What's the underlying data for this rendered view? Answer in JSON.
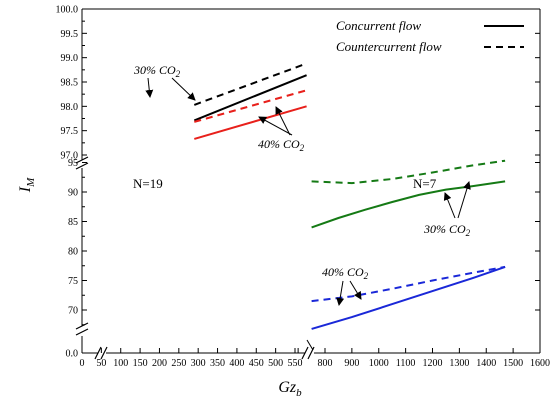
{
  "chart_data": {
    "type": "line",
    "xlabel_main": "Gz",
    "xlabel_sub": "b",
    "ylabel_main": "I",
    "ylabel_sub": "M",
    "legend": [
      {
        "label": "Concurrent flow",
        "style": "solid"
      },
      {
        "label": "Countercurrent flow",
        "style": "dashed"
      }
    ],
    "legend_position": "top-right",
    "panels": [
      {
        "label": "N=19",
        "xlim": [
          280,
          580
        ],
        "ylim": [
          97.0,
          100.0
        ],
        "series": [
          {
            "name": "30% CO2 countercurrent",
            "color": "#000000",
            "style": "dashed",
            "x": [
              290,
              580
            ],
            "y": [
              98.03,
              98.88
            ]
          },
          {
            "name": "30% CO2 concurrent",
            "color": "#000000",
            "style": "solid",
            "x": [
              290,
              580
            ],
            "y": [
              97.71,
              98.64
            ]
          },
          {
            "name": "40% CO2 countercurrent",
            "color": "#e8201b",
            "style": "dashed",
            "x": [
              290,
              580
            ],
            "y": [
              97.68,
              98.33
            ]
          },
          {
            "name": "40% CO2 concurrent",
            "color": "#e8201b",
            "style": "solid",
            "x": [
              290,
              580
            ],
            "y": [
              97.33,
              98.0
            ]
          }
        ]
      },
      {
        "label": "N=7",
        "xlim": [
          730,
          1600
        ],
        "ylim": [
          65,
          96
        ],
        "series": [
          {
            "name": "30% CO2 countercurrent",
            "color": "#157a15",
            "style": "dashed",
            "x": [
              750,
              900,
              1050,
              1200,
              1350,
              1470
            ],
            "y": [
              91.8,
              91.5,
              92.2,
              93.3,
              94.5,
              95.3
            ]
          },
          {
            "name": "30% CO2 concurrent",
            "color": "#157a15",
            "style": "solid",
            "x": [
              750,
              850,
              950,
              1050,
              1150,
              1250,
              1350,
              1470
            ],
            "y": [
              84.0,
              85.6,
              87.0,
              88.3,
              89.5,
              90.4,
              91.0,
              91.8
            ]
          },
          {
            "name": "40% CO2 countercurrent",
            "color": "#1a28d8",
            "style": "dashed",
            "x": [
              750,
              900,
              1050,
              1200,
              1350,
              1470
            ],
            "y": [
              71.5,
              72.3,
              73.6,
              75.0,
              76.3,
              77.3
            ]
          },
          {
            "name": "40% CO2 concurrent",
            "color": "#1a28d8",
            "style": "solid",
            "x": [
              750,
              900,
              1050,
              1200,
              1350,
              1470
            ],
            "y": [
              66.8,
              68.8,
              71.0,
              73.2,
              75.4,
              77.3
            ]
          }
        ]
      }
    ],
    "x_ticks": [
      0,
      50,
      100,
      150,
      200,
      250,
      300,
      350,
      400,
      450,
      500,
      550,
      700,
      800,
      900,
      1000,
      1100,
      1200,
      1300,
      1400,
      1500,
      1600
    ],
    "x_tick_labels": [
      "0",
      "",
      "",
      "",
      "",
      "",
      "300",
      "350",
      "400",
      "450",
      "500",
      "550",
      "",
      "800",
      "900",
      "1000",
      "1100",
      "1200",
      "1300",
      "1400",
      "1500",
      "1600"
    ],
    "y_ticks_upper": [
      "97.0",
      "97.5",
      "98.0",
      "98.5",
      "99.0",
      "99.5",
      "100.0"
    ],
    "y_ticks_lower": [
      "70",
      "75",
      "80",
      "85",
      "90",
      "95"
    ],
    "y_tick_zero": "0.0",
    "annotations": [
      {
        "text": "30% CO",
        "sub": "2"
      },
      {
        "text": "40% CO",
        "sub": "2"
      },
      {
        "text": "30% CO",
        "sub": "2"
      },
      {
        "text": "40% CO",
        "sub": "2"
      }
    ]
  }
}
